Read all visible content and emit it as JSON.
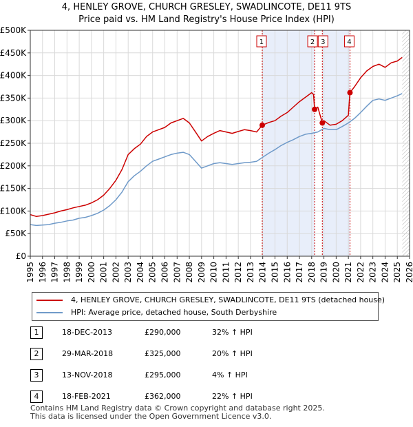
{
  "title": {
    "line1": "4, HENLEY GROVE, CHURCH GRESLEY, SWADLINCOTE, DE11 9TS",
    "line2": "Price paid vs. HM Land Registry's House Price Index (HPI)"
  },
  "colors": {
    "property": "#cc0000",
    "hpi": "#6f9ac9",
    "shade": "#e8eefa",
    "grid": "#d9d9d9"
  },
  "chart_data": {
    "type": "line",
    "x_ticks": [
      "1995",
      "1996",
      "1997",
      "1998",
      "1999",
      "2000",
      "2001",
      "2002",
      "2003",
      "2004",
      "2005",
      "2006",
      "2007",
      "2008",
      "2009",
      "2010",
      "2011",
      "2012",
      "2013",
      "2014",
      "2015",
      "2016",
      "2017",
      "2018",
      "2019",
      "2020",
      "2021",
      "2022",
      "2023",
      "2024",
      "2025",
      "2026"
    ],
    "y_ticks": [
      "£0",
      "£50K",
      "£100K",
      "£150K",
      "£200K",
      "£250K",
      "£300K",
      "£350K",
      "£400K",
      "£450K",
      "£500K"
    ],
    "xlim": [
      1995,
      2026
    ],
    "ylim": [
      0,
      500000
    ],
    "series": [
      {
        "name": "4, HENLEY GROVE, CHURCH GRESLEY, SWADLINCOTE, DE11 9TS (detached house)",
        "x": [
          1995.0,
          1995.5,
          1996.0,
          1996.5,
          1997.0,
          1997.5,
          1998.0,
          1998.5,
          1999.0,
          1999.5,
          2000.0,
          2000.5,
          2001.0,
          2001.5,
          2002.0,
          2002.5,
          2003.0,
          2003.5,
          2004.0,
          2004.5,
          2005.0,
          2005.5,
          2006.0,
          2006.5,
          2007.0,
          2007.5,
          2008.0,
          2008.5,
          2009.0,
          2009.5,
          2010.0,
          2010.5,
          2011.0,
          2011.5,
          2012.0,
          2012.5,
          2013.0,
          2013.5,
          2013.96,
          2014.5,
          2015.0,
          2015.5,
          2016.0,
          2016.5,
          2017.0,
          2017.5,
          2018.0,
          2018.15,
          2018.24,
          2018.5,
          2018.87,
          2019.0,
          2019.5,
          2020.0,
          2020.5,
          2021.0,
          2021.13,
          2021.5,
          2022.0,
          2022.5,
          2023.0,
          2023.5,
          2024.0,
          2024.5,
          2025.0,
          2025.4
        ],
        "y": [
          92000,
          88000,
          90000,
          93000,
          96000,
          100000,
          103000,
          107000,
          110000,
          113000,
          118000,
          125000,
          135000,
          150000,
          168000,
          192000,
          225000,
          238000,
          248000,
          265000,
          275000,
          280000,
          285000,
          295000,
          300000,
          305000,
          295000,
          275000,
          255000,
          265000,
          272000,
          278000,
          275000,
          272000,
          276000,
          280000,
          278000,
          275000,
          290000,
          296000,
          300000,
          310000,
          318000,
          330000,
          342000,
          352000,
          362000,
          358000,
          325000,
          330000,
          295000,
          300000,
          290000,
          292000,
          300000,
          312000,
          362000,
          375000,
          395000,
          410000,
          420000,
          425000,
          418000,
          428000,
          432000,
          440000
        ]
      },
      {
        "name": "HPI: Average price, detached house, South Derbyshire",
        "x": [
          1995.0,
          1995.5,
          1996.0,
          1996.5,
          1997.0,
          1997.5,
          1998.0,
          1998.5,
          1999.0,
          1999.5,
          2000.0,
          2000.5,
          2001.0,
          2001.5,
          2002.0,
          2002.5,
          2003.0,
          2003.5,
          2004.0,
          2004.5,
          2005.0,
          2005.5,
          2006.0,
          2006.5,
          2007.0,
          2007.5,
          2008.0,
          2008.5,
          2009.0,
          2009.5,
          2010.0,
          2010.5,
          2011.0,
          2011.5,
          2012.0,
          2012.5,
          2013.0,
          2013.5,
          2014.0,
          2014.5,
          2015.0,
          2015.5,
          2016.0,
          2016.5,
          2017.0,
          2017.5,
          2018.0,
          2018.5,
          2019.0,
          2019.5,
          2020.0,
          2020.5,
          2021.0,
          2021.5,
          2022.0,
          2022.5,
          2023.0,
          2023.5,
          2024.0,
          2024.5,
          2025.0,
          2025.4
        ],
        "y": [
          70000,
          68000,
          69000,
          70000,
          73000,
          75000,
          78000,
          80000,
          84000,
          86000,
          90000,
          95000,
          102000,
          112000,
          125000,
          142000,
          165000,
          178000,
          188000,
          200000,
          210000,
          215000,
          220000,
          225000,
          228000,
          230000,
          225000,
          210000,
          195000,
          200000,
          205000,
          207000,
          205000,
          203000,
          205000,
          207000,
          208000,
          210000,
          219000,
          228000,
          236000,
          245000,
          252000,
          258000,
          265000,
          270000,
          272000,
          275000,
          283000,
          280000,
          280000,
          287000,
          295000,
          305000,
          318000,
          332000,
          345000,
          348000,
          345000,
          350000,
          355000,
          360000
        ]
      }
    ],
    "transactions": [
      {
        "label": "1",
        "x": 2013.96,
        "y": 290000
      },
      {
        "label": "2",
        "x": 2018.24,
        "y": 325000
      },
      {
        "label": "3",
        "x": 2018.87,
        "y": 295000
      },
      {
        "label": "4",
        "x": 2021.13,
        "y": 362000
      }
    ],
    "shaded_spans": [
      [
        2013.96,
        2018.24
      ],
      [
        2018.87,
        2021.13
      ]
    ],
    "hatched_from": 2025.4
  },
  "legend": {
    "property": "4, HENLEY GROVE, CHURCH GRESLEY, SWADLINCOTE, DE11 9TS (detached house)",
    "hpi": "HPI: Average price, detached house, South Derbyshire"
  },
  "table": [
    {
      "num": "1",
      "date": "18-DEC-2013",
      "price": "£290,000",
      "hpi": "32% ↑ HPI"
    },
    {
      "num": "2",
      "date": "29-MAR-2018",
      "price": "£325,000",
      "hpi": "20% ↑ HPI"
    },
    {
      "num": "3",
      "date": "13-NOV-2018",
      "price": "£295,000",
      "hpi": "4% ↑ HPI"
    },
    {
      "num": "4",
      "date": "18-FEB-2021",
      "price": "£362,000",
      "hpi": "22% ↑ HPI"
    }
  ],
  "footer": {
    "line1": "Contains HM Land Registry data © Crown copyright and database right 2025.",
    "line2": "This data is licensed under the Open Government Licence v3.0."
  }
}
